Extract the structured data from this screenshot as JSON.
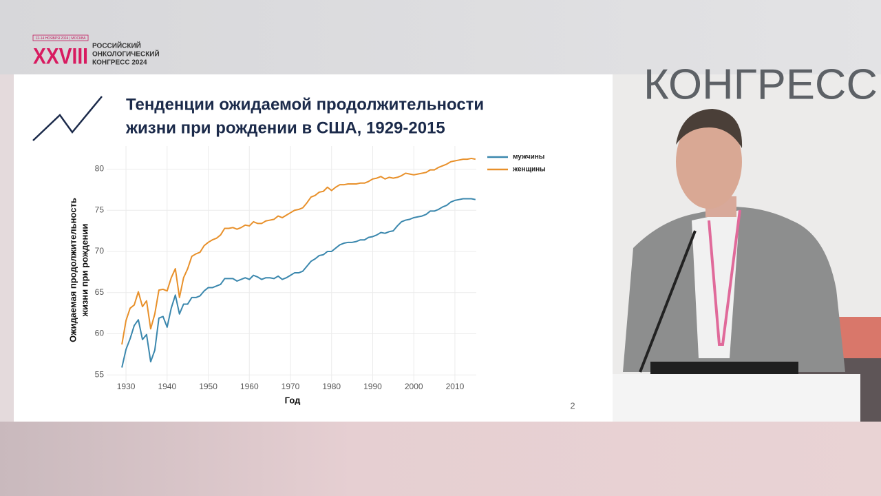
{
  "logo": {
    "dates": "12-14 НОЯБРЯ 2024 | МОСКВА",
    "number": "XXVIII",
    "line1": "РОССИЙСКИЙ",
    "line2": "ОНКОЛОГИЧЕСКИЙ",
    "line3": "КОНГРЕСС 2024"
  },
  "background": {
    "sign": "КОНГРЕСС"
  },
  "slide": {
    "page_number": "2"
  },
  "chart_data": {
    "type": "line",
    "title": [
      "Тенденции ожидаемой продолжительности",
      "жизни при рождении в США, 1929-2015"
    ],
    "x_label": "Год",
    "y_label": [
      "Ожидаемая продолжительность",
      "жизни при рождении"
    ],
    "x": [
      1929,
      1930,
      1931,
      1932,
      1933,
      1934,
      1935,
      1936,
      1937,
      1938,
      1939,
      1940,
      1941,
      1942,
      1943,
      1944,
      1945,
      1946,
      1947,
      1948,
      1949,
      1950,
      1951,
      1952,
      1953,
      1954,
      1955,
      1956,
      1957,
      1958,
      1959,
      1960,
      1961,
      1962,
      1963,
      1964,
      1965,
      1966,
      1967,
      1968,
      1969,
      1970,
      1971,
      1972,
      1973,
      1974,
      1975,
      1976,
      1977,
      1978,
      1979,
      1980,
      1981,
      1982,
      1983,
      1984,
      1985,
      1986,
      1987,
      1988,
      1989,
      1990,
      1991,
      1992,
      1993,
      1994,
      1995,
      1996,
      1997,
      1998,
      1999,
      2000,
      2001,
      2002,
      2003,
      2004,
      2005,
      2006,
      2007,
      2008,
      2009,
      2010,
      2011,
      2012,
      2013,
      2014,
      2015
    ],
    "series": [
      {
        "name": "мужчины",
        "color": "#3a87ad",
        "values": [
          55.9,
          58.1,
          59.4,
          61.0,
          61.7,
          59.3,
          59.9,
          56.6,
          58.0,
          61.9,
          62.1,
          60.8,
          63.1,
          64.7,
          62.4,
          63.6,
          63.6,
          64.4,
          64.4,
          64.6,
          65.2,
          65.6,
          65.6,
          65.8,
          66.0,
          66.7,
          66.7,
          66.7,
          66.4,
          66.6,
          66.8,
          66.6,
          67.1,
          66.9,
          66.6,
          66.8,
          66.8,
          66.7,
          67.0,
          66.6,
          66.8,
          67.1,
          67.4,
          67.4,
          67.6,
          68.2,
          68.8,
          69.1,
          69.5,
          69.6,
          70.0,
          70.0,
          70.4,
          70.8,
          71.0,
          71.1,
          71.1,
          71.2,
          71.4,
          71.4,
          71.7,
          71.8,
          72.0,
          72.3,
          72.2,
          72.4,
          72.5,
          73.1,
          73.6,
          73.8,
          73.9,
          74.1,
          74.2,
          74.3,
          74.5,
          74.9,
          74.9,
          75.1,
          75.4,
          75.6,
          76.0,
          76.2,
          76.3,
          76.4,
          76.4,
          76.4,
          76.3
        ]
      },
      {
        "name": "женщины",
        "color": "#e8902a",
        "values": [
          58.7,
          61.6,
          63.1,
          63.5,
          65.1,
          63.3,
          64.0,
          60.6,
          62.4,
          65.3,
          65.4,
          65.2,
          66.8,
          67.9,
          64.4,
          66.8,
          67.9,
          69.4,
          69.7,
          69.9,
          70.7,
          71.1,
          71.4,
          71.6,
          72.0,
          72.8,
          72.8,
          72.9,
          72.7,
          72.9,
          73.2,
          73.1,
          73.6,
          73.4,
          73.4,
          73.7,
          73.8,
          73.9,
          74.3,
          74.1,
          74.4,
          74.7,
          75.0,
          75.1,
          75.3,
          75.9,
          76.6,
          76.8,
          77.2,
          77.3,
          77.8,
          77.4,
          77.8,
          78.1,
          78.1,
          78.2,
          78.2,
          78.2,
          78.3,
          78.3,
          78.5,
          78.8,
          78.9,
          79.1,
          78.8,
          79.0,
          78.9,
          79.0,
          79.2,
          79.5,
          79.4,
          79.3,
          79.4,
          79.5,
          79.6,
          79.9,
          79.9,
          80.2,
          80.4,
          80.6,
          80.9,
          81.0,
          81.1,
          81.2,
          81.2,
          81.3,
          81.2
        ]
      }
    ],
    "xlim": [
      1925.3,
      2015.2
    ],
    "ylim": [
      54.1,
      82.8
    ],
    "xticks": [
      1930,
      1940,
      1950,
      1960,
      1970,
      1980,
      1990,
      2000,
      2010
    ],
    "yticks": [
      55,
      60,
      65,
      70,
      75,
      80
    ],
    "grid": true,
    "legend": "right"
  }
}
